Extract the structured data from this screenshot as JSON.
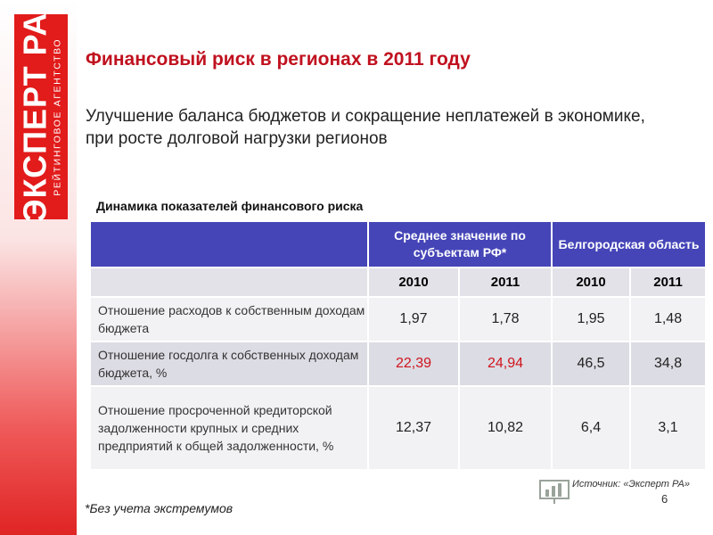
{
  "logo": {
    "main": "ЭКСПЕРТ РА",
    "sub": "РЕЙТИНГОВОЕ АГЕНТСТВО"
  },
  "title": "Финансовый риск в регионах в 2011 году",
  "subtitle": "Улучшение баланса бюджетов и сокращение неплатежей в экономике, при росте долговой нагрузки регионов",
  "table": {
    "caption": "Динамика показателей финансового риска",
    "groups": [
      "Среднее значение по субъектам РФ*",
      "Белгородская область"
    ],
    "years": [
      "2010",
      "2011",
      "2010",
      "2011"
    ],
    "rows": [
      {
        "label": "Отношение расходов к собственным доходам бюджета",
        "values": [
          "1,97",
          "1,78",
          "1,95",
          "1,48"
        ]
      },
      {
        "label": "Отношение госдолга к собственных доходам бюджета, %",
        "values": [
          "22,39",
          "24,94",
          "46,5",
          "34,8"
        ]
      },
      {
        "label": "Отношение просроченной кредиторской задолженности крупных и средних предприятий к общей задолженности, %",
        "values": [
          "12,37",
          "10,82",
          "6,4",
          "3,1"
        ]
      }
    ],
    "highlight_color": "#d0141c"
  },
  "source": "Источник: «Эксперт РА»",
  "page_number": "6",
  "footnote": "*Без учета экстремумов"
}
